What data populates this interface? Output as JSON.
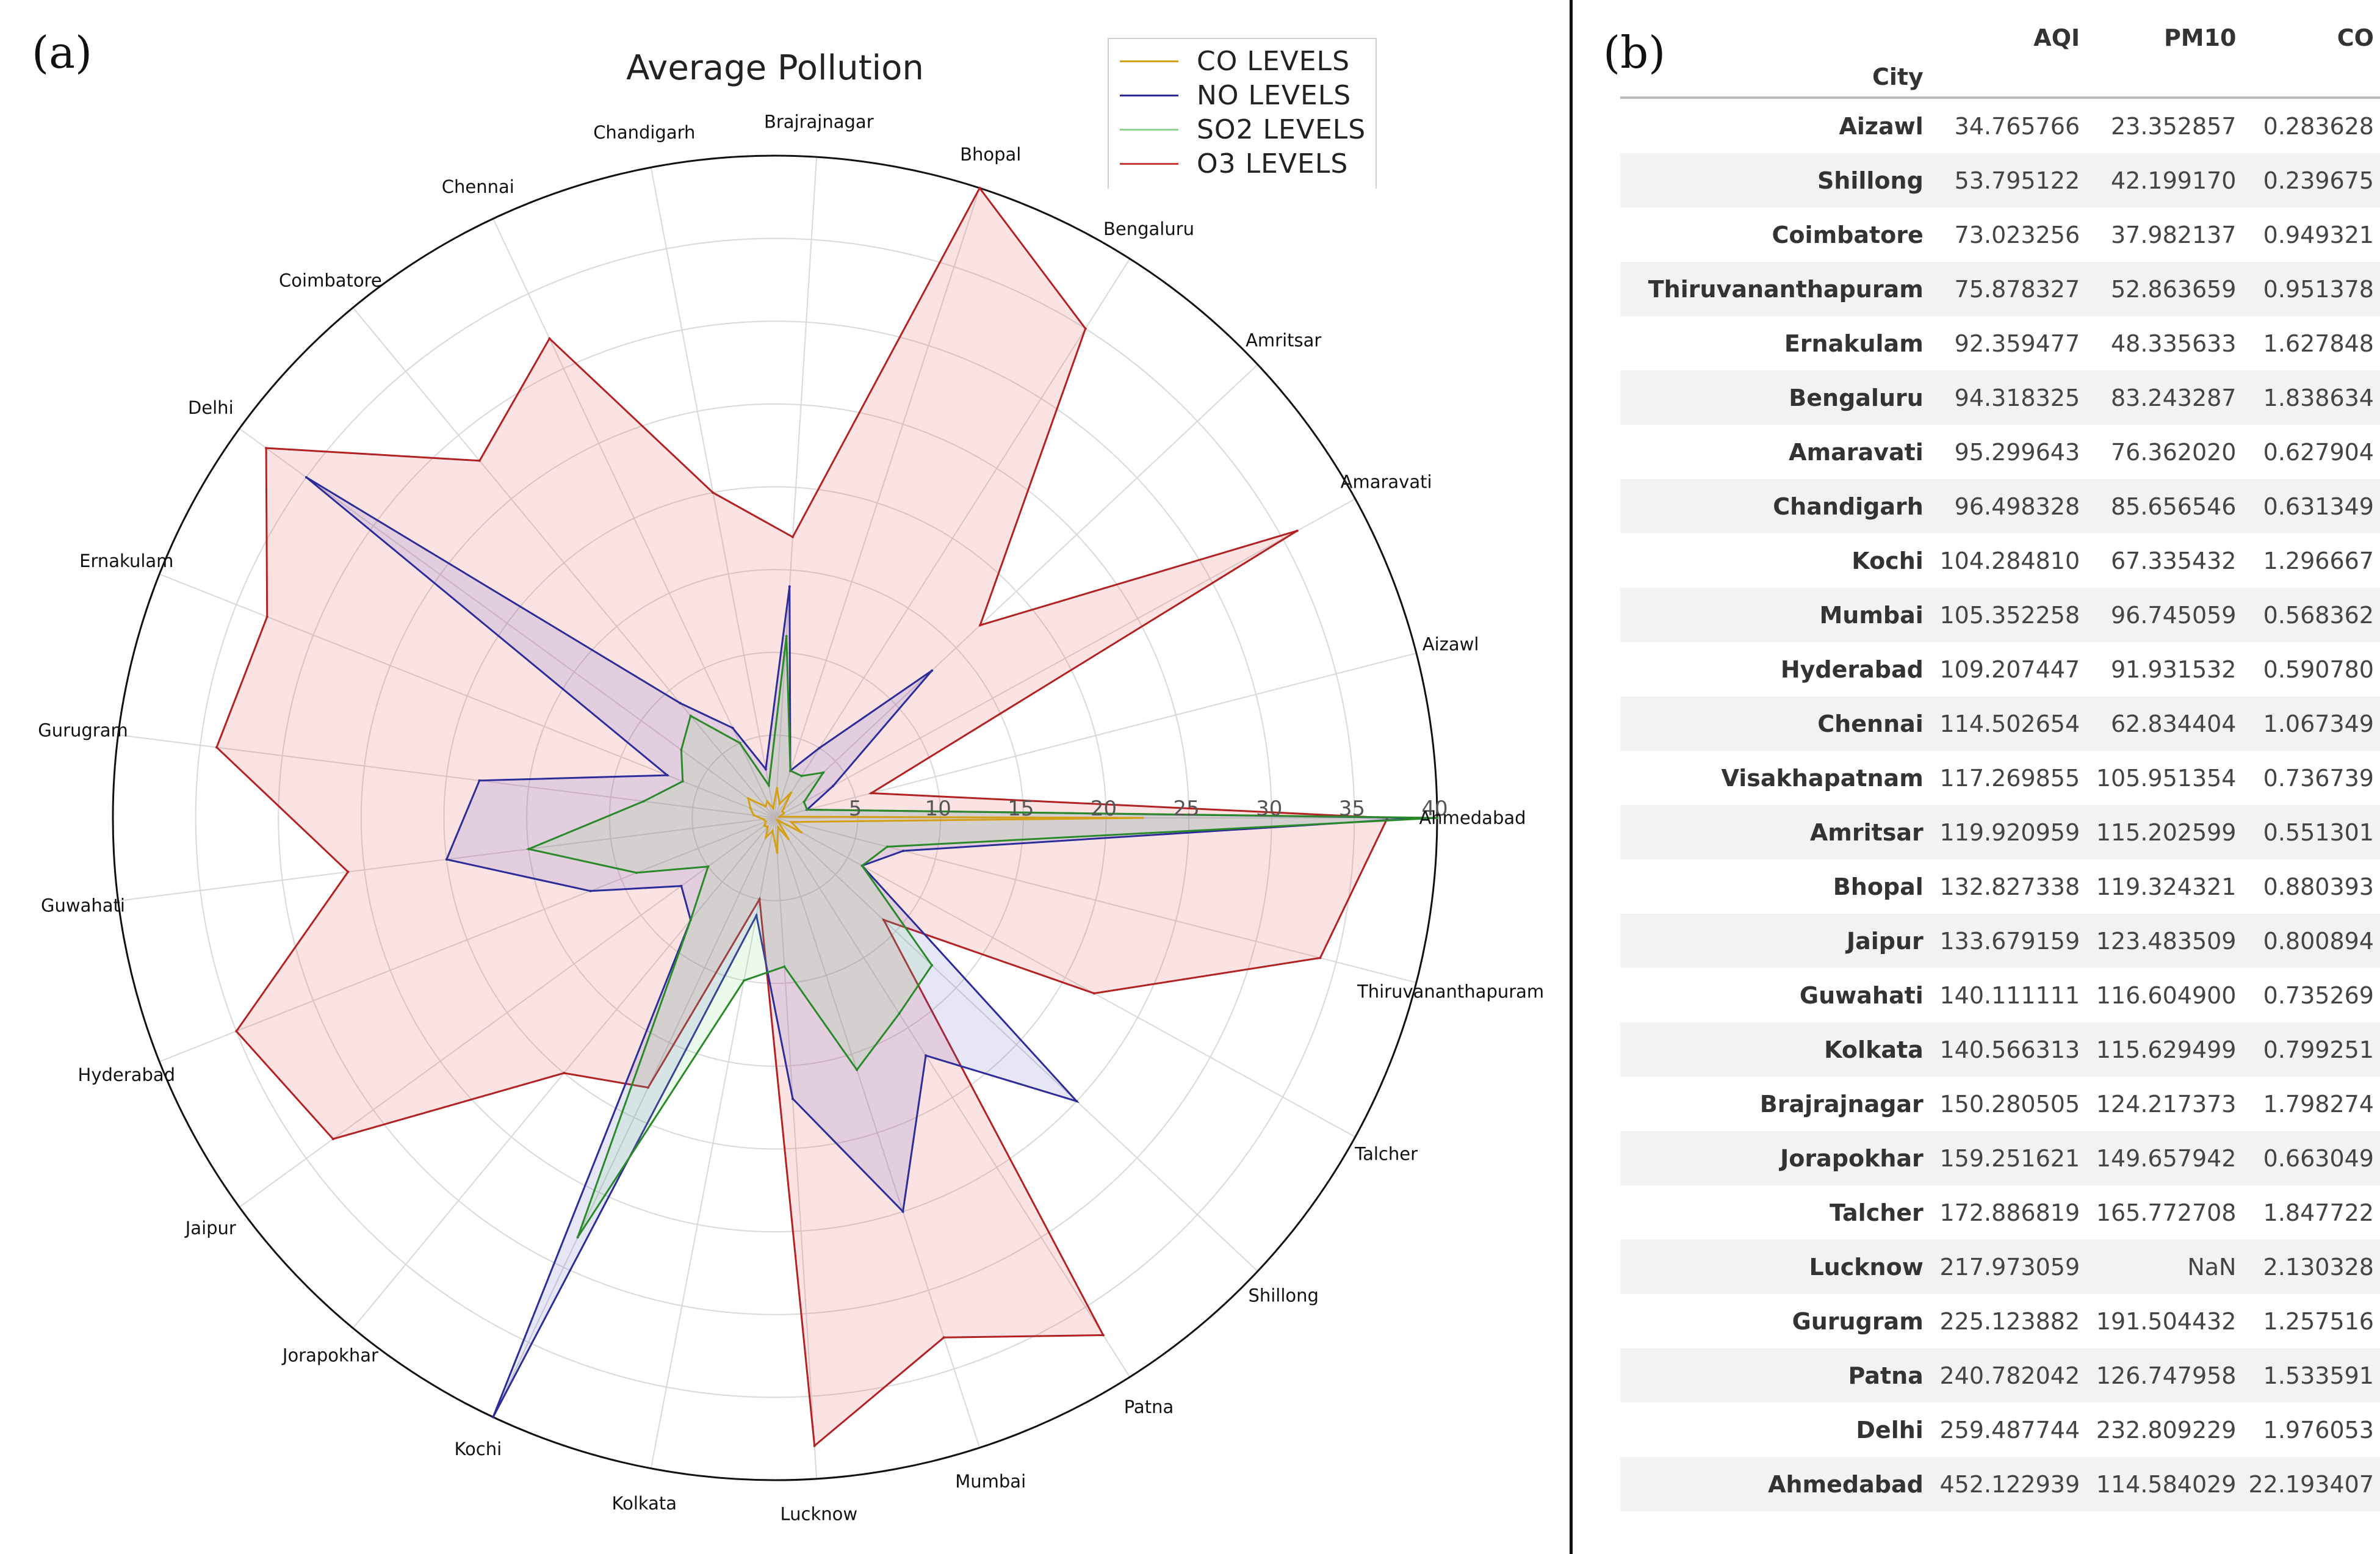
{
  "panel_a_label": "(a)",
  "panel_b_label": "(b)",
  "chart_data": {
    "type": "radar",
    "title": "Average Pollution",
    "r_ticks": [
      5,
      10,
      15,
      20,
      25,
      30,
      35,
      40
    ],
    "r_max": 40,
    "categories": [
      "Ahmedabad",
      "Aizawl",
      "Amaravati",
      "Amritsar",
      "Bengaluru",
      "Bhopal",
      "Brajrajnagar",
      "Chandigarh",
      "Chennai",
      "Coimbatore",
      "Delhi",
      "Ernakulam",
      "Gurugram",
      "Guwahati",
      "Hyderabad",
      "Jaipur",
      "Jorapokhar",
      "Kochi",
      "Kolkata",
      "Lucknow",
      "Mumbai",
      "Patna",
      "Shillong",
      "Talcher",
      "Thiruvananthapuram"
    ],
    "legend_position": "top-right",
    "series": [
      {
        "name": "CO LEVELS",
        "color": "#d4a017",
        "fill": false,
        "values": [
          22.2,
          0.3,
          0.6,
          0.6,
          1.8,
          0.9,
          1.8,
          0.6,
          1.1,
          0.9,
          2.0,
          1.6,
          1.3,
          0.7,
          0.6,
          0.8,
          0.7,
          1.3,
          0.8,
          2.1,
          0.6,
          1.5,
          0.2,
          1.8,
          1.0
        ]
      },
      {
        "name": "NO LEVELS",
        "color": "#2d2d9a",
        "fill": "rgba(80,80,200,0.14)",
        "values": [
          39,
          2,
          4,
          13,
          5,
          3,
          14,
          3,
          6,
          9,
          35,
          7,
          18,
          20,
          12,
          7,
          8,
          40,
          6,
          17,
          25,
          17,
          25,
          6,
          8
        ]
      },
      {
        "name": "SO2 LEVELS",
        "color": "#2a8a2a",
        "fill": "rgba(120,220,120,0.14)",
        "values": [
          40,
          2,
          2,
          4,
          3,
          3,
          11,
          2,
          5,
          8,
          7,
          6,
          8,
          15,
          9,
          5,
          8,
          28,
          10,
          9,
          16,
          14,
          13,
          6,
          7
        ]
      },
      {
        "name": "O3 LEVELS",
        "color": "#b22222",
        "fill": "rgba(235,80,80,0.16)",
        "values": [
          37,
          6,
          36,
          17,
          35,
          40,
          17,
          20,
          32,
          28,
          38,
          33,
          34,
          26,
          35,
          33,
          20,
          18,
          5,
          38,
          33,
          37,
          9,
          22,
          34
        ]
      }
    ]
  },
  "table": {
    "index_name": "City",
    "columns": [
      "AQI",
      "PM10",
      "CO"
    ],
    "rows": [
      {
        "city": "Aizawl",
        "aqi": "34.765766",
        "pm10": "23.352857",
        "co": "0.283628"
      },
      {
        "city": "Shillong",
        "aqi": "53.795122",
        "pm10": "42.199170",
        "co": "0.239675"
      },
      {
        "city": "Coimbatore",
        "aqi": "73.023256",
        "pm10": "37.982137",
        "co": "0.949321"
      },
      {
        "city": "Thiruvananthapuram",
        "aqi": "75.878327",
        "pm10": "52.863659",
        "co": "0.951378"
      },
      {
        "city": "Ernakulam",
        "aqi": "92.359477",
        "pm10": "48.335633",
        "co": "1.627848"
      },
      {
        "city": "Bengaluru",
        "aqi": "94.318325",
        "pm10": "83.243287",
        "co": "1.838634"
      },
      {
        "city": "Amaravati",
        "aqi": "95.299643",
        "pm10": "76.362020",
        "co": "0.627904"
      },
      {
        "city": "Chandigarh",
        "aqi": "96.498328",
        "pm10": "85.656546",
        "co": "0.631349"
      },
      {
        "city": "Kochi",
        "aqi": "104.284810",
        "pm10": "67.335432",
        "co": "1.296667"
      },
      {
        "city": "Mumbai",
        "aqi": "105.352258",
        "pm10": "96.745059",
        "co": "0.568362"
      },
      {
        "city": "Hyderabad",
        "aqi": "109.207447",
        "pm10": "91.931532",
        "co": "0.590780"
      },
      {
        "city": "Chennai",
        "aqi": "114.502654",
        "pm10": "62.834404",
        "co": "1.067349"
      },
      {
        "city": "Visakhapatnam",
        "aqi": "117.269855",
        "pm10": "105.951354",
        "co": "0.736739"
      },
      {
        "city": "Amritsar",
        "aqi": "119.920959",
        "pm10": "115.202599",
        "co": "0.551301"
      },
      {
        "city": "Bhopal",
        "aqi": "132.827338",
        "pm10": "119.324321",
        "co": "0.880393"
      },
      {
        "city": "Jaipur",
        "aqi": "133.679159",
        "pm10": "123.483509",
        "co": "0.800894"
      },
      {
        "city": "Guwahati",
        "aqi": "140.111111",
        "pm10": "116.604900",
        "co": "0.735269"
      },
      {
        "city": "Kolkata",
        "aqi": "140.566313",
        "pm10": "115.629499",
        "co": "0.799251"
      },
      {
        "city": "Brajrajnagar",
        "aqi": "150.280505",
        "pm10": "124.217373",
        "co": "1.798274"
      },
      {
        "city": "Jorapokhar",
        "aqi": "159.251621",
        "pm10": "149.657942",
        "co": "0.663049"
      },
      {
        "city": "Talcher",
        "aqi": "172.886819",
        "pm10": "165.772708",
        "co": "1.847722"
      },
      {
        "city": "Lucknow",
        "aqi": "217.973059",
        "pm10": "NaN",
        "co": "2.130328"
      },
      {
        "city": "Gurugram",
        "aqi": "225.123882",
        "pm10": "191.504432",
        "co": "1.257516"
      },
      {
        "city": "Patna",
        "aqi": "240.782042",
        "pm10": "126.747958",
        "co": "1.533591"
      },
      {
        "city": "Delhi",
        "aqi": "259.487744",
        "pm10": "232.809229",
        "co": "1.976053"
      },
      {
        "city": "Ahmedabad",
        "aqi": "452.122939",
        "pm10": "114.584029",
        "co": "22.193407"
      }
    ]
  }
}
